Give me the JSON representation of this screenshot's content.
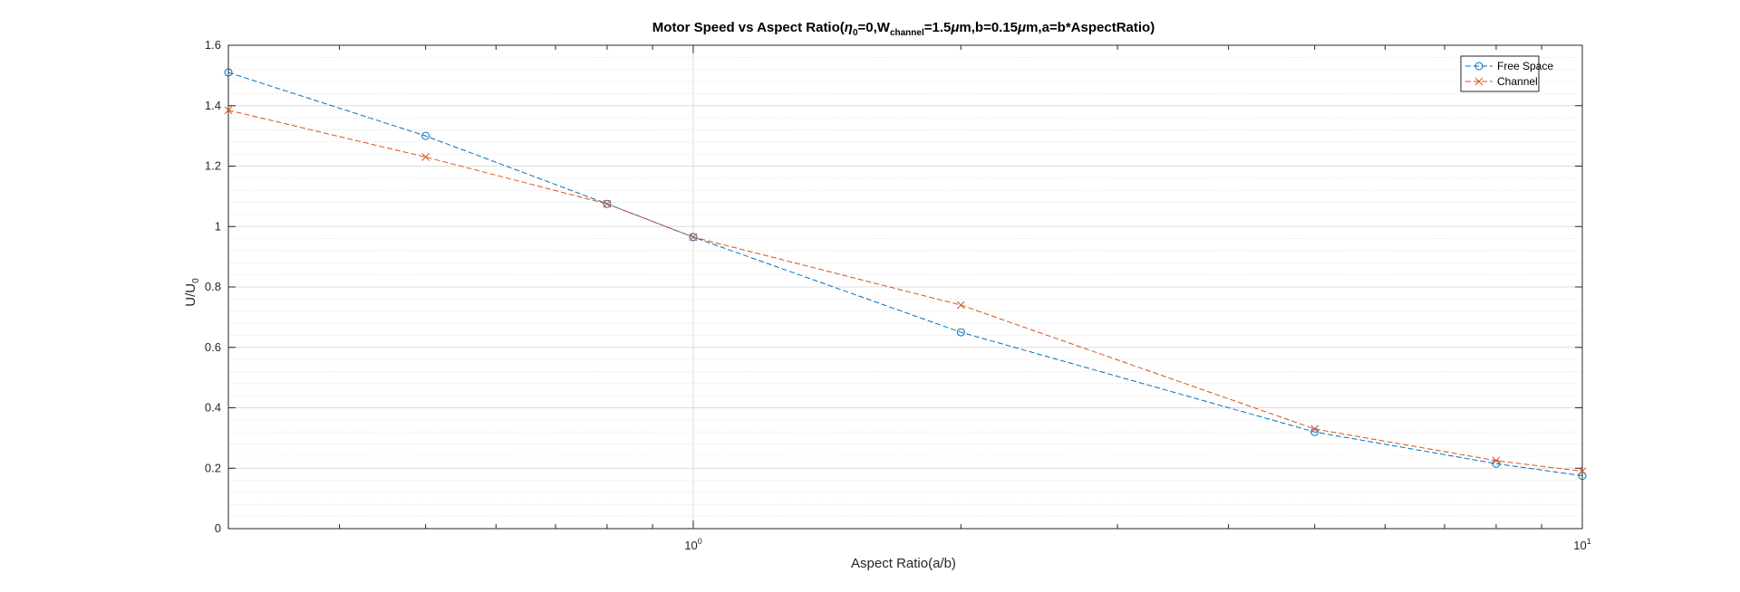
{
  "chart_data": {
    "type": "line",
    "title": {
      "pre": "Motor Speed vs Aspect Ratio(",
      "eta": "η",
      "eta_sub": "0",
      "after_eta": "=0,W",
      "w_sub": "channel",
      "after_w": "=1.5",
      "mu1": "μ",
      "after_mu1": "m,b=0.15",
      "mu2": "μ",
      "after_mu2": "m,a=b*AspectRatio)"
    },
    "xlabel": "Aspect Ratio(a/b)",
    "ylabel": {
      "main": "U/U",
      "sub": "0"
    },
    "x_scale": "log",
    "xlim": [
      0.3,
      10
    ],
    "ylim": [
      0,
      1.6
    ],
    "x_ticks": [
      {
        "value": 1,
        "base": "10",
        "exp": "0"
      },
      {
        "value": 10,
        "base": "10",
        "exp": "1"
      }
    ],
    "y_ticks": [
      {
        "value": 0,
        "label": "0"
      },
      {
        "value": 0.2,
        "label": "0.2"
      },
      {
        "value": 0.4,
        "label": "0.4"
      },
      {
        "value": 0.6,
        "label": "0.6"
      },
      {
        "value": 0.8,
        "label": "0.8"
      },
      {
        "value": 1,
        "label": "1"
      },
      {
        "value": 1.2,
        "label": "1.2"
      },
      {
        "value": 1.4,
        "label": "1.4"
      },
      {
        "value": 1.6,
        "label": "1.6"
      }
    ],
    "grid": "on, with minor grid",
    "legend_position": "top-right",
    "series": [
      {
        "name": "Free Space",
        "color": "#0072BD",
        "marker": "circle",
        "line_style": "dashed",
        "x": [
          0.3,
          0.5,
          0.8,
          1,
          2,
          5,
          8,
          10
        ],
        "y": [
          1.51,
          1.3,
          1.075,
          0.965,
          0.65,
          0.32,
          0.215,
          0.175
        ]
      },
      {
        "name": "Channel",
        "color": "#D95319",
        "marker": "cross",
        "line_style": "dashed",
        "x": [
          0.3,
          0.5,
          0.8,
          1,
          2,
          5,
          8,
          10
        ],
        "y": [
          1.385,
          1.23,
          1.075,
          0.965,
          0.74,
          0.33,
          0.225,
          0.19
        ]
      }
    ]
  }
}
